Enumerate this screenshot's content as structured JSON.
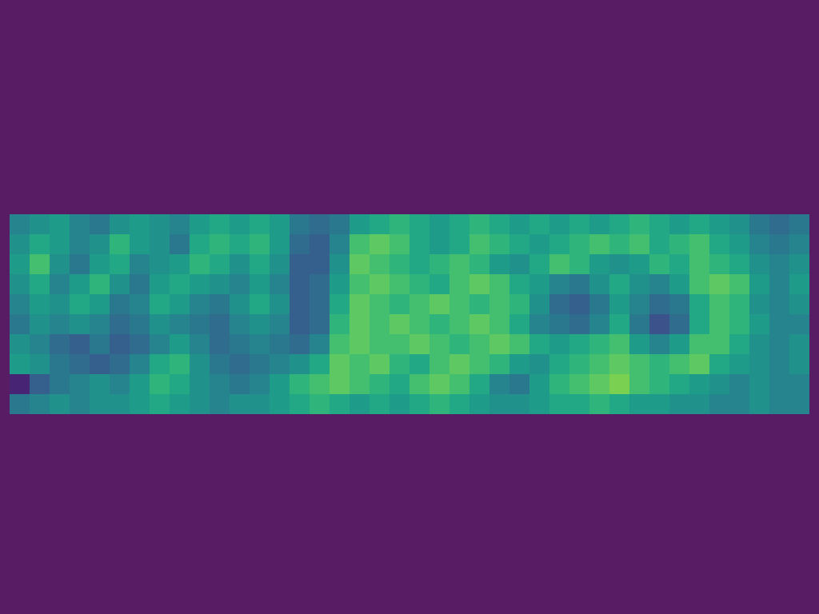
{
  "chart_data": {
    "type": "heatmap",
    "color": "viridis",
    "color_range": [
      0,
      1
    ],
    "tick_labels": false,
    "cells": [
      [
        0.45,
        0.5,
        0.55,
        0.45,
        0.4,
        0.5,
        0.55,
        0.5,
        0.45,
        0.55,
        0.6,
        0.55,
        0.6,
        0.55,
        0.4,
        0.35,
        0.4,
        0.55,
        0.6,
        0.65,
        0.6,
        0.55,
        0.6,
        0.65,
        0.6,
        0.55,
        0.6,
        0.55,
        0.6,
        0.55,
        0.6,
        0.65,
        0.6,
        0.55,
        0.6,
        0.55,
        0.5,
        0.4,
        0.35,
        0.4
      ],
      [
        0.5,
        0.6,
        0.55,
        0.45,
        0.5,
        0.65,
        0.55,
        0.5,
        0.4,
        0.6,
        0.65,
        0.6,
        0.65,
        0.55,
        0.35,
        0.3,
        0.45,
        0.7,
        0.75,
        0.7,
        0.6,
        0.55,
        0.6,
        0.7,
        0.65,
        0.6,
        0.55,
        0.6,
        0.65,
        0.7,
        0.65,
        0.7,
        0.6,
        0.65,
        0.7,
        0.6,
        0.55,
        0.45,
        0.4,
        0.45
      ],
      [
        0.55,
        0.7,
        0.5,
        0.4,
        0.55,
        0.6,
        0.45,
        0.5,
        0.55,
        0.65,
        0.6,
        0.5,
        0.6,
        0.5,
        0.3,
        0.3,
        0.5,
        0.75,
        0.7,
        0.65,
        0.6,
        0.65,
        0.7,
        0.65,
        0.55,
        0.5,
        0.6,
        0.7,
        0.65,
        0.55,
        0.5,
        0.55,
        0.65,
        0.6,
        0.7,
        0.65,
        0.6,
        0.5,
        0.45,
        0.5
      ],
      [
        0.5,
        0.6,
        0.45,
        0.55,
        0.65,
        0.5,
        0.4,
        0.55,
        0.6,
        0.55,
        0.5,
        0.45,
        0.55,
        0.45,
        0.3,
        0.35,
        0.55,
        0.7,
        0.75,
        0.7,
        0.65,
        0.6,
        0.7,
        0.75,
        0.7,
        0.6,
        0.55,
        0.45,
        0.4,
        0.5,
        0.6,
        0.5,
        0.45,
        0.55,
        0.7,
        0.75,
        0.7,
        0.55,
        0.45,
        0.55
      ],
      [
        0.45,
        0.55,
        0.5,
        0.6,
        0.55,
        0.4,
        0.45,
        0.6,
        0.55,
        0.45,
        0.4,
        0.5,
        0.6,
        0.5,
        0.3,
        0.35,
        0.6,
        0.75,
        0.7,
        0.65,
        0.7,
        0.75,
        0.7,
        0.65,
        0.7,
        0.65,
        0.5,
        0.35,
        0.3,
        0.4,
        0.55,
        0.45,
        0.35,
        0.4,
        0.6,
        0.7,
        0.65,
        0.5,
        0.45,
        0.5
      ],
      [
        0.4,
        0.5,
        0.45,
        0.5,
        0.45,
        0.35,
        0.4,
        0.5,
        0.45,
        0.4,
        0.35,
        0.45,
        0.5,
        0.45,
        0.3,
        0.35,
        0.65,
        0.75,
        0.7,
        0.75,
        0.7,
        0.65,
        0.7,
        0.75,
        0.7,
        0.6,
        0.45,
        0.4,
        0.35,
        0.45,
        0.6,
        0.4,
        0.25,
        0.35,
        0.6,
        0.7,
        0.65,
        0.55,
        0.45,
        0.45
      ],
      [
        0.5,
        0.45,
        0.35,
        0.3,
        0.4,
        0.3,
        0.35,
        0.45,
        0.55,
        0.45,
        0.35,
        0.4,
        0.45,
        0.4,
        0.35,
        0.45,
        0.7,
        0.75,
        0.7,
        0.7,
        0.75,
        0.7,
        0.65,
        0.7,
        0.75,
        0.7,
        0.6,
        0.55,
        0.6,
        0.65,
        0.7,
        0.55,
        0.45,
        0.55,
        0.7,
        0.7,
        0.6,
        0.5,
        0.45,
        0.5
      ],
      [
        0.55,
        0.5,
        0.4,
        0.35,
        0.3,
        0.35,
        0.45,
        0.6,
        0.65,
        0.5,
        0.4,
        0.35,
        0.4,
        0.45,
        0.5,
        0.6,
        0.75,
        0.7,
        0.75,
        0.65,
        0.6,
        0.7,
        0.75,
        0.7,
        0.65,
        0.55,
        0.5,
        0.6,
        0.65,
        0.7,
        0.75,
        0.7,
        0.65,
        0.7,
        0.75,
        0.6,
        0.55,
        0.5,
        0.45,
        0.5
      ],
      [
        0.1,
        0.3,
        0.4,
        0.45,
        0.5,
        0.45,
        0.55,
        0.65,
        0.6,
        0.5,
        0.45,
        0.4,
        0.45,
        0.55,
        0.65,
        0.7,
        0.75,
        0.7,
        0.65,
        0.6,
        0.7,
        0.75,
        0.7,
        0.6,
        0.45,
        0.4,
        0.55,
        0.65,
        0.7,
        0.75,
        0.8,
        0.7,
        0.65,
        0.6,
        0.55,
        0.5,
        0.45,
        0.5,
        0.45,
        0.45
      ],
      [
        0.4,
        0.45,
        0.5,
        0.45,
        0.5,
        0.5,
        0.55,
        0.6,
        0.55,
        0.5,
        0.45,
        0.5,
        0.5,
        0.55,
        0.6,
        0.65,
        0.6,
        0.55,
        0.6,
        0.55,
        0.6,
        0.65,
        0.6,
        0.55,
        0.5,
        0.5,
        0.55,
        0.6,
        0.6,
        0.65,
        0.6,
        0.55,
        0.55,
        0.5,
        0.5,
        0.45,
        0.45,
        0.5,
        0.45,
        0.45
      ]
    ]
  }
}
